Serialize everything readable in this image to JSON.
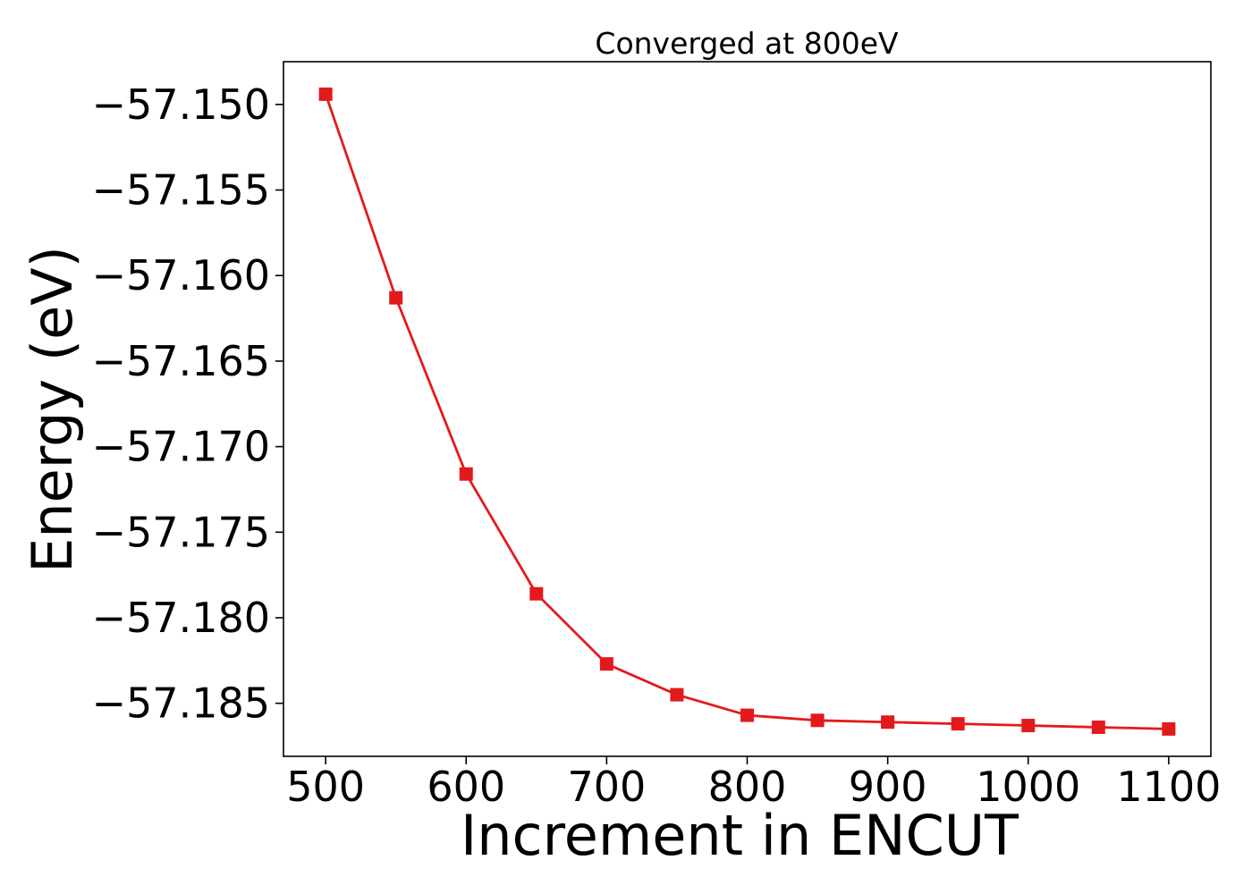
{
  "chart_data": {
    "type": "line",
    "title": "Converged at 800eV",
    "xlabel": "Increment in ENCUT",
    "ylabel": "Energy (eV)",
    "x": [
      500,
      550,
      600,
      650,
      700,
      750,
      800,
      850,
      900,
      950,
      1000,
      1050,
      1100
    ],
    "series": [
      {
        "values": [
          -57.1494,
          -57.1613,
          -57.1716,
          -57.1786,
          -57.1827,
          -57.1845,
          -57.1857,
          -57.186,
          -57.1861,
          -57.1862,
          -57.1863,
          -57.1864,
          -57.1865
        ],
        "color": "#e31a1c",
        "marker": "square"
      }
    ],
    "xlim": [
      470,
      1130
    ],
    "ylim": [
      -57.1881,
      -57.1475
    ],
    "xticks": [
      500,
      600,
      700,
      800,
      900,
      1000,
      1100
    ],
    "xtick_labels": [
      "500",
      "600",
      "700",
      "800",
      "900",
      "1000",
      "1100"
    ],
    "yticks": [
      -57.15,
      -57.155,
      -57.16,
      -57.165,
      -57.17,
      -57.175,
      -57.18,
      -57.185
    ],
    "ytick_labels": [
      "−57.150",
      "−57.155",
      "−57.160",
      "−57.165",
      "−57.170",
      "−57.175",
      "−57.180",
      "−57.185"
    ],
    "grid": false,
    "legend": false
  }
}
